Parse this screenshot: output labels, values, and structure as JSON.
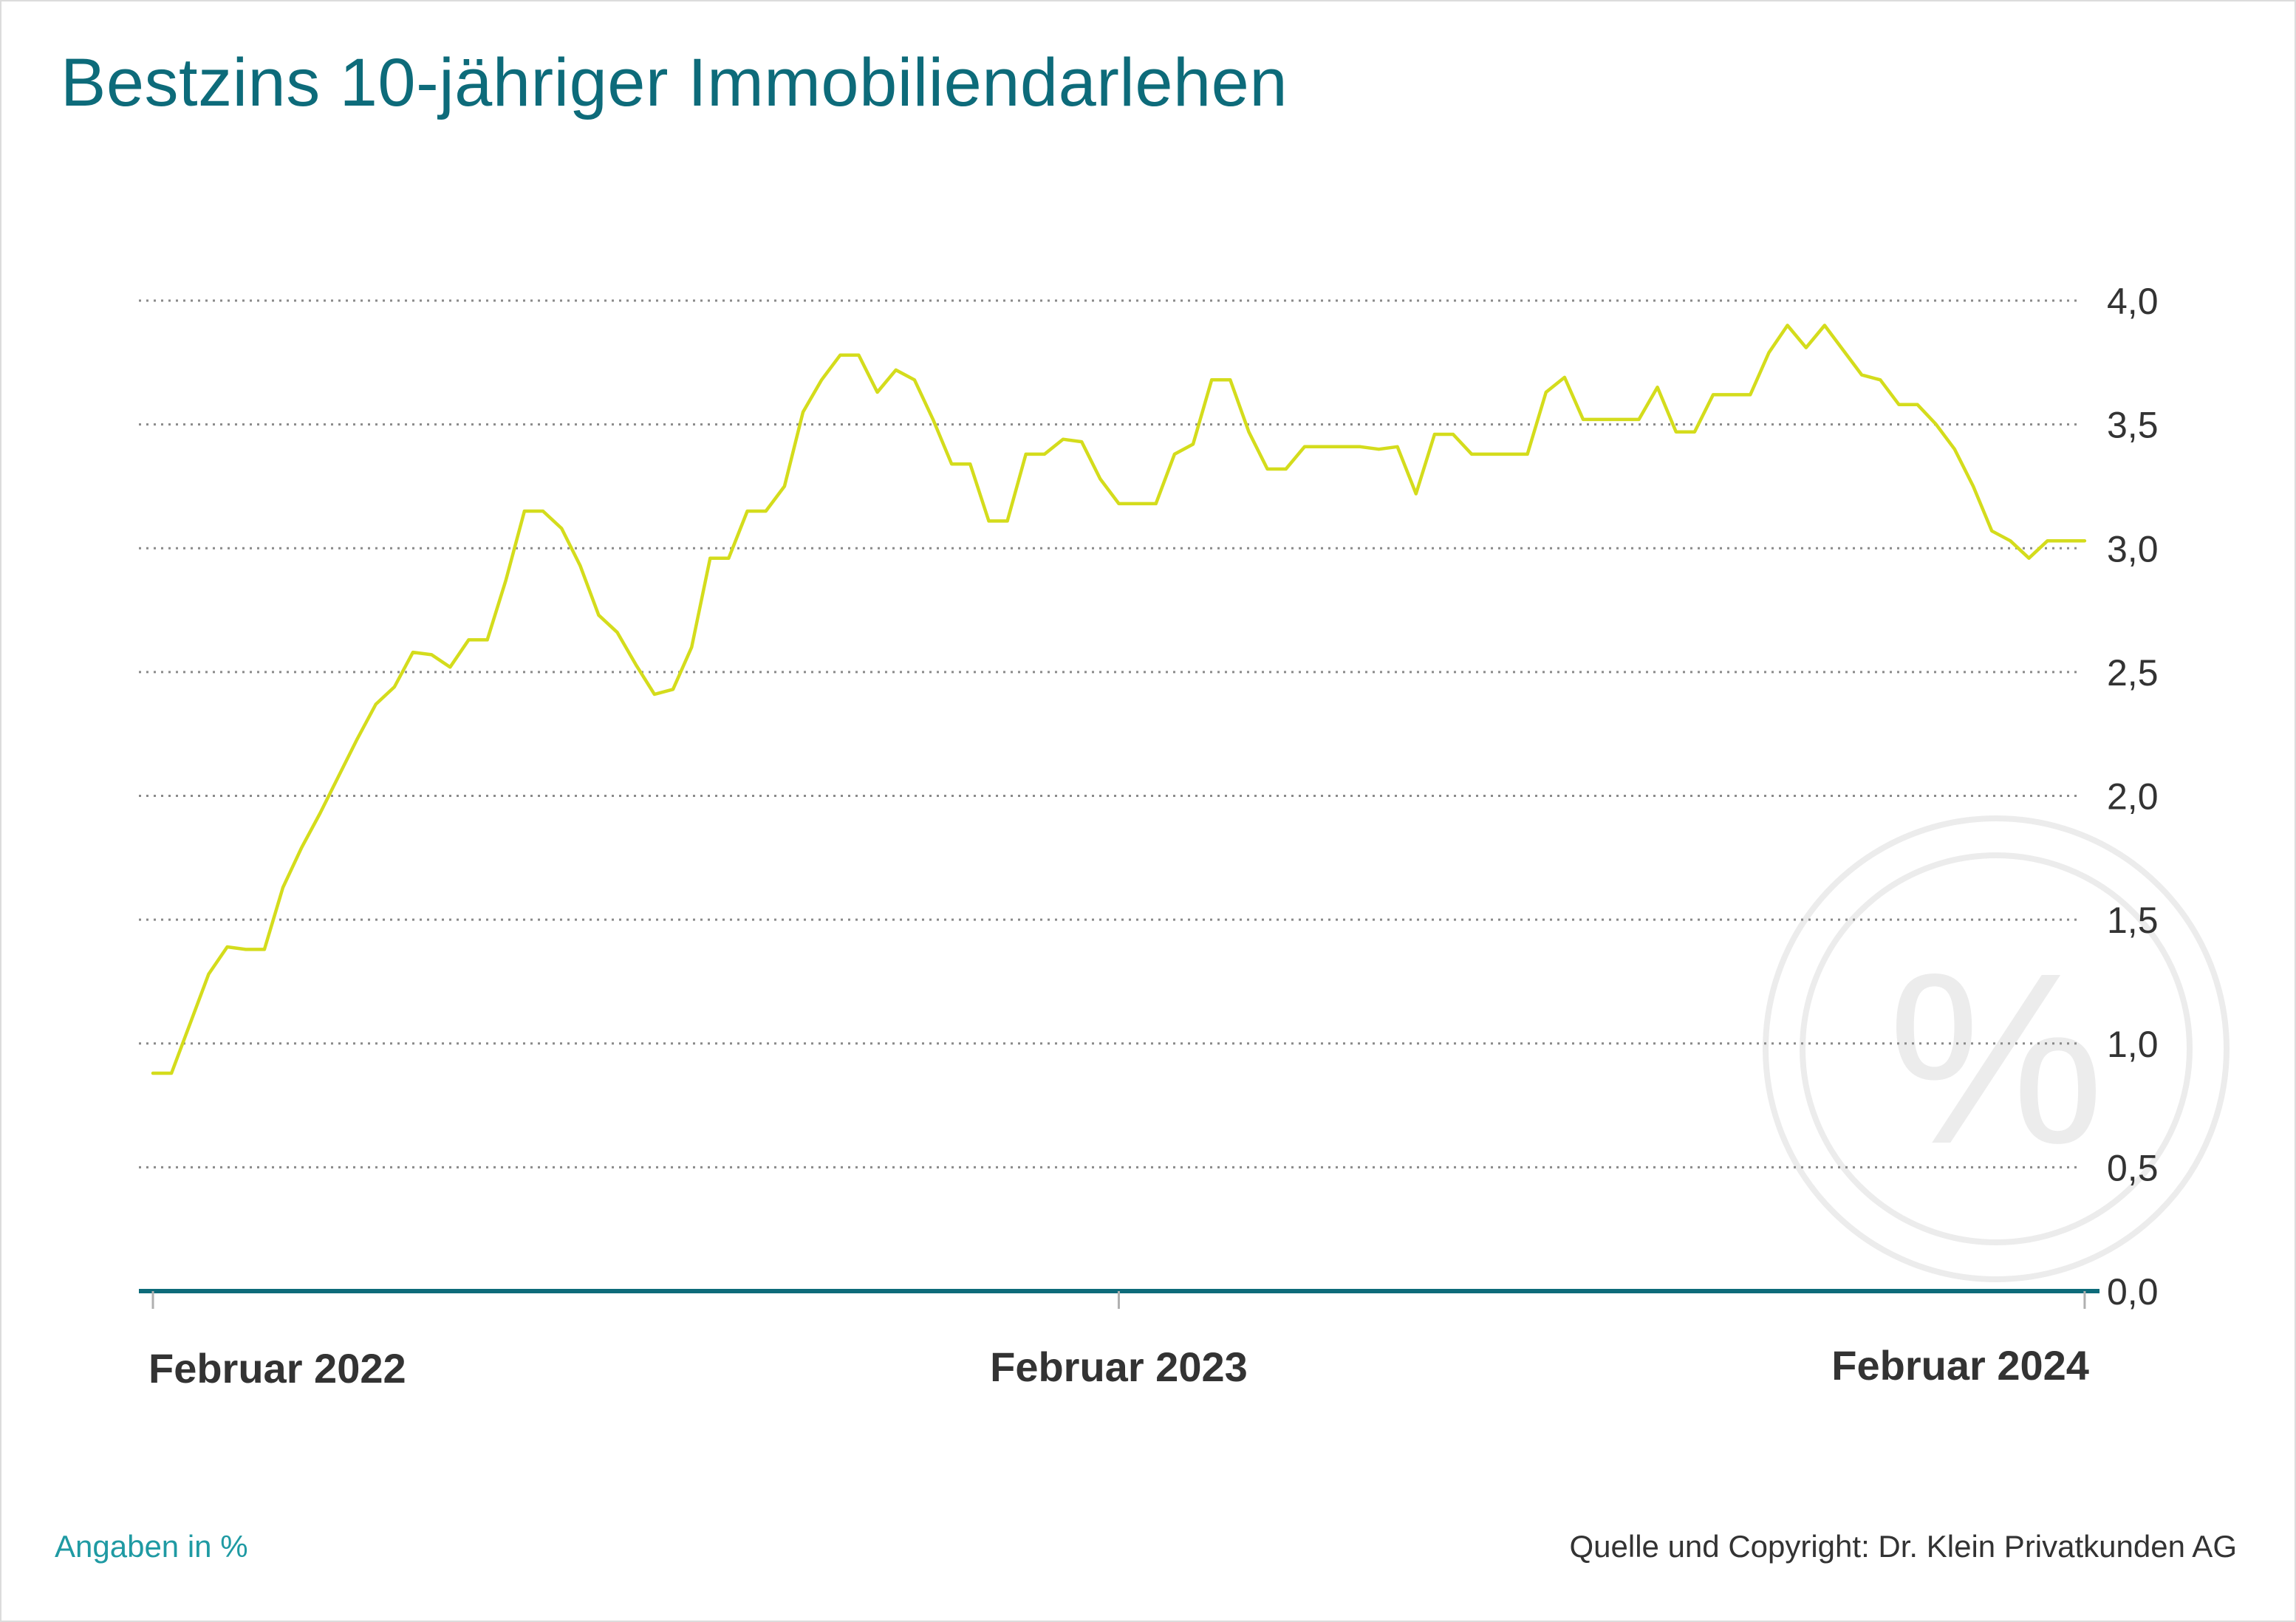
{
  "title": "Bestzins 10-jähriger Immobiliendarlehen",
  "footer": {
    "unit_note": "Angaben in %",
    "source": "Quelle und Copyright: Dr. Klein Privatkunden AG"
  },
  "watermark": {
    "symbol": "%",
    "icon": "percent-circle-icon"
  },
  "colors": {
    "title": "#0d6b7a",
    "line": "#d4dc1c",
    "axis": "#0d6b7a",
    "grid": "#8a8a8a",
    "unit_note": "#1f9aa3"
  },
  "chart_data": {
    "type": "line",
    "title": "Bestzins 10-jähriger Immobiliendarlehen",
    "xlabel": "",
    "ylabel": "",
    "ylim": [
      0,
      4
    ],
    "yticks": [
      0,
      0.5,
      1,
      1.5,
      2,
      2.5,
      3,
      3.5,
      4
    ],
    "ytick_labels": [
      "0,0",
      "0,5",
      "1,0",
      "1,5",
      "2,0",
      "2,5",
      "3,0",
      "3,5",
      "4,0"
    ],
    "xticks": [
      0,
      52,
      104
    ],
    "xtick_labels": [
      "Februar 2022",
      "Februar 2023",
      "Februar 2024"
    ],
    "xlim": [
      0,
      104.6
    ],
    "grid": true,
    "legend": "none",
    "x": [
      0,
      1,
      2,
      3,
      4,
      5,
      6,
      7,
      8,
      9,
      10,
      11,
      12,
      13,
      14,
      15,
      16,
      17,
      18,
      19,
      20,
      21,
      22,
      23,
      24,
      25,
      26,
      27,
      28,
      29,
      30,
      31,
      32,
      33,
      34,
      35,
      36,
      37,
      38,
      39,
      40,
      41,
      42,
      43,
      44,
      45,
      46,
      47,
      48,
      49,
      50,
      51,
      52,
      53,
      54,
      55,
      56,
      57,
      58,
      59,
      60,
      61,
      62,
      63,
      64,
      65,
      66,
      67,
      68,
      69,
      70,
      71,
      72,
      73,
      74,
      75,
      76,
      77,
      78,
      79,
      80,
      81,
      82,
      83,
      84,
      85,
      86,
      87,
      88,
      89,
      90,
      91,
      92,
      93,
      94,
      95,
      96,
      97,
      98,
      99,
      100,
      101,
      102,
      103,
      104
    ],
    "values": [
      0.88,
      0.88,
      1.08,
      1.28,
      1.39,
      1.38,
      1.38,
      1.63,
      1.79,
      1.93,
      2.08,
      2.23,
      2.37,
      2.44,
      2.58,
      2.57,
      2.52,
      2.63,
      2.63,
      2.87,
      3.15,
      3.15,
      3.08,
      2.93,
      2.73,
      2.66,
      2.53,
      2.41,
      2.43,
      2.6,
      2.96,
      2.96,
      3.15,
      3.15,
      3.25,
      3.55,
      3.68,
      3.78,
      3.78,
      3.63,
      3.72,
      3.68,
      3.52,
      3.34,
      3.34,
      3.11,
      3.11,
      3.38,
      3.38,
      3.44,
      3.43,
      3.28,
      3.18,
      3.18,
      3.18,
      3.38,
      3.42,
      3.68,
      3.68,
      3.47,
      3.32,
      3.32,
      3.41,
      3.41,
      3.41,
      3.41,
      3.4,
      3.41,
      3.22,
      3.46,
      3.46,
      3.38,
      3.38,
      3.38,
      3.38,
      3.63,
      3.69,
      3.52,
      3.52,
      3.52,
      3.52,
      3.65,
      3.47,
      3.47,
      3.62,
      3.62,
      3.62,
      3.79,
      3.9,
      3.81,
      3.9,
      3.8,
      3.7,
      3.68,
      3.58,
      3.58,
      3.5,
      3.4,
      3.25,
      3.07,
      3.03,
      2.96,
      3.03,
      3.03,
      3.03
    ]
  }
}
